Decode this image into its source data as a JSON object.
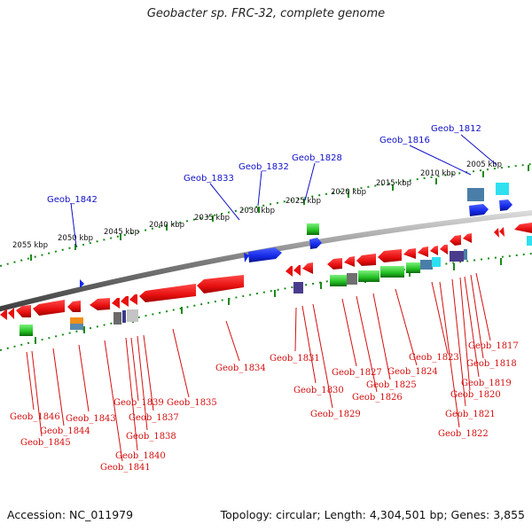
{
  "title": "Geobacter sp. FRC-32, complete genome",
  "footer": {
    "accession": "Accession: NC_011979",
    "topology": "Topology: circular; Length: 4,304,501 bp; Genes: 3,855"
  },
  "colors": {
    "forward_gene": "#1428e6",
    "reverse_gene": "#e81414",
    "label_forward": "#1010c8",
    "label_reverse": "#d41010",
    "backbone": "#8c8c8c",
    "tick": "#1a8a1a"
  },
  "kbp_labels": [
    "2005 kbp",
    "2010 kbp",
    "2015 kbp",
    "2020 kbp",
    "2025 kbp",
    "2030 kbp",
    "2035 kbp",
    "2040 kbp",
    "2045 kbp",
    "2050 kbp",
    "2055 kbp"
  ],
  "forward_labels": [
    "Geob_1812",
    "Geob_1816",
    "Geob_1828",
    "Geob_1832",
    "Geob_1833",
    "Geob_1842"
  ],
  "reverse_labels": [
    "Geob_1817",
    "Geob_1818",
    "Geob_1819",
    "Geob_1820",
    "Geob_1821",
    "Geob_1822",
    "Geob_1823",
    "Geob_1824",
    "Geob_1825",
    "Geob_1826",
    "Geob_1827",
    "Geob_1829",
    "Geob_1830",
    "Geob_1831",
    "Geob_1834",
    "Geob_1835",
    "Geob_1837",
    "Geob_1838",
    "Geob_1839",
    "Geob_1840",
    "Geob_1841",
    "Geob_1843",
    "Geob_1844",
    "Geob_1845",
    "Geob_1846"
  ]
}
